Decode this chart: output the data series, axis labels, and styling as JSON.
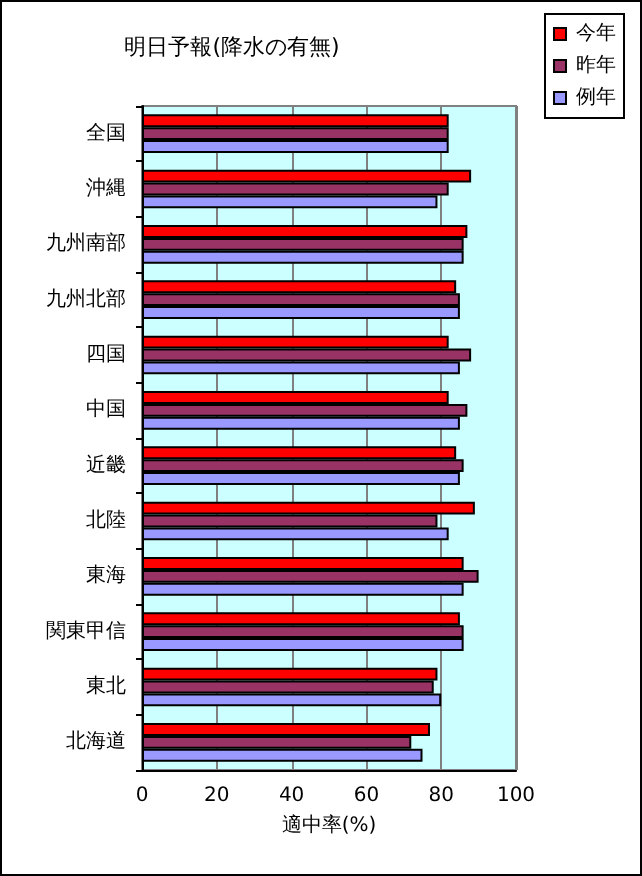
{
  "chart_data": {
    "type": "bar",
    "orientation": "horizontal",
    "title": "明日予報(降水の有無)",
    "xlabel": "適中率(%)",
    "categories": [
      "全国",
      "沖縄",
      "九州南部",
      "九州北部",
      "四国",
      "中国",
      "近畿",
      "北陸",
      "東海",
      "関東甲信",
      "東北",
      "北海道"
    ],
    "series": [
      {
        "name": "今年",
        "color": "#ff0000",
        "values": [
          82,
          88,
          87,
          84,
          82,
          82,
          84,
          89,
          86,
          85,
          79,
          77
        ]
      },
      {
        "name": "昨年",
        "color": "#993366",
        "values": [
          82,
          82,
          86,
          85,
          88,
          87,
          86,
          79,
          90,
          86,
          78,
          72
        ]
      },
      {
        "name": "例年",
        "color": "#9999ff",
        "values": [
          82,
          79,
          86,
          85,
          85,
          85,
          85,
          82,
          86,
          86,
          80,
          75
        ]
      }
    ],
    "xlim": [
      0,
      100
    ],
    "xticks": [
      0,
      20,
      40,
      60,
      80,
      100
    ],
    "grid": "x",
    "legend": "top right"
  }
}
